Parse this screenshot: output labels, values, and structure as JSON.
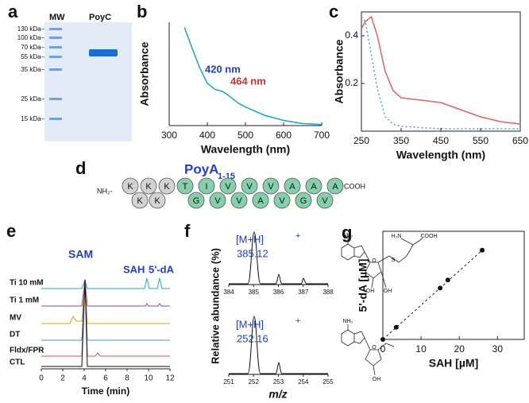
{
  "panel_labels": [
    "a",
    "b",
    "c",
    "d",
    "e",
    "f",
    "g"
  ],
  "gel": {
    "lanes": [
      "MW",
      "PoyC"
    ],
    "markers": [
      "130 kDa–",
      "100 kDa–",
      "70 kDa–",
      "55 kDa–",
      "35 kDa–",
      "25 kDa–",
      "15 kDa–"
    ]
  },
  "peptide": {
    "name": "PoyA",
    "range": "1-15",
    "n_term": "NH₂-",
    "c_term": "COOH",
    "top_row": [
      "K",
      "K",
      "K",
      "T",
      "I",
      "V",
      "V",
      "V",
      "A",
      "A",
      "A"
    ],
    "bottom_row": [
      "K",
      "K",
      "G",
      "V",
      "V",
      "A",
      "V",
      "G",
      "V"
    ]
  },
  "hplc": {
    "peak_labels": [
      "SAM",
      "SAH",
      "5'-dA"
    ],
    "traces": [
      "Ti 10 mM",
      "Ti 1 mM",
      "MV",
      "DT",
      "Fldx/FPR",
      "CTL"
    ],
    "x_label": "Time (min)",
    "xticks": [
      0,
      2,
      4,
      6,
      8,
      10,
      12
    ]
  },
  "ms": {
    "y_label": "Relative abundance (%)",
    "x_label": "m/z",
    "spectra": [
      {
        "ion": "[M+H]",
        "charge": "+",
        "mz": 385.12,
        "xticks": [
          384,
          385,
          386,
          387,
          388
        ]
      },
      {
        "ion": "[M+H]",
        "charge": "+",
        "mz": 252.16,
        "xticks": [
          251,
          252,
          253,
          254,
          255
        ]
      }
    ],
    "sah_atoms": [
      "NH₂",
      "H₂N",
      "COOH",
      "S",
      "O",
      "OH",
      "OH"
    ],
    "dA_atoms": [
      "NH₂",
      "O",
      "OH"
    ]
  },
  "chart_data": [
    {
      "type": "line",
      "x_label": "Wavelength (nm)",
      "y_label": "Absorbance",
      "xlim": [
        300,
        700
      ],
      "xticks": [
        300,
        400,
        500,
        600,
        700
      ],
      "ylim": [
        0,
        1
      ],
      "x": [
        340,
        360,
        380,
        400,
        420,
        440,
        460,
        480,
        500,
        550,
        600,
        650,
        700
      ],
      "series": [
        {
          "color": "#1ba1c6",
          "dash": false,
          "values": [
            0.95,
            0.75,
            0.56,
            0.41,
            0.35,
            0.33,
            0.28,
            0.22,
            0.18,
            0.1,
            0.05,
            0.02,
            0.01
          ]
        }
      ],
      "annotations": [
        {
          "text": "420 nm",
          "color": "#1f3fc4"
        },
        {
          "text": "464 nm",
          "color": "#c8322e"
        }
      ]
    },
    {
      "type": "line",
      "x_label": "Wavelength (nm)",
      "y_label": "Absorbance",
      "xlim": [
        250,
        650
      ],
      "xticks": [
        250,
        350,
        450,
        550,
        650
      ],
      "ylim": [
        0,
        0.5
      ],
      "yticks": [
        0.2,
        0.4
      ],
      "x": [
        250,
        260,
        275,
        290,
        310,
        330,
        350,
        400,
        450,
        500,
        550,
        600,
        650
      ],
      "series": [
        {
          "color": "#d9645f",
          "dash": false,
          "values": [
            0.43,
            0.46,
            0.48,
            0.4,
            0.25,
            0.17,
            0.14,
            0.13,
            0.12,
            0.09,
            0.06,
            0.04,
            0.03
          ]
        },
        {
          "color": "#4aa6b8",
          "dash": true,
          "values": [
            0.48,
            0.46,
            0.32,
            0.18,
            0.06,
            0.03,
            0.02,
            0.015,
            0.01,
            0.01,
            0.01,
            0.01,
            0.01
          ]
        }
      ]
    },
    {
      "type": "scatter",
      "x_label": "SAH [µM]",
      "y_label": "5'-dA [µM]",
      "xlim": [
        0,
        37
      ],
      "xticks": [
        0,
        10,
        20,
        30
      ],
      "ylim": [
        0,
        40
      ],
      "x": [
        0,
        3.5,
        15,
        17,
        26
      ],
      "values": [
        0,
        4.5,
        19,
        22,
        33
      ],
      "color": "#111111"
    }
  ]
}
